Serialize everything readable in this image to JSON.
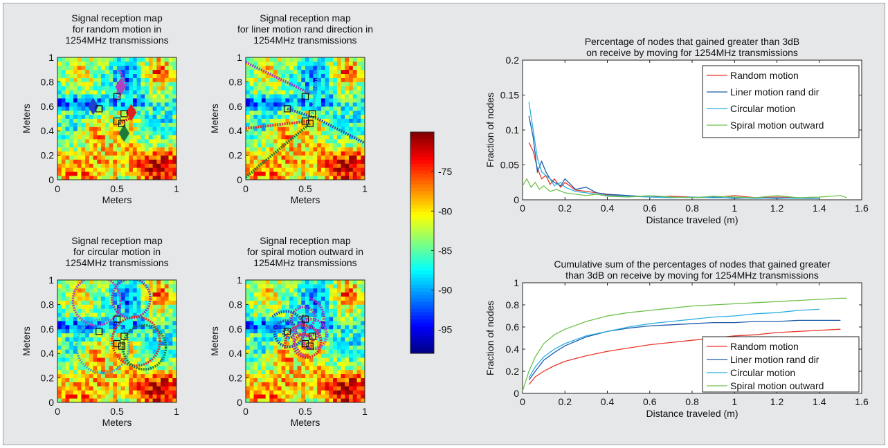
{
  "chart_data": [
    {
      "type": "heatmap",
      "title": "Signal reception map\nfor random motion in\n1254MHz transmissions",
      "xlabel": "Meters",
      "ylabel": "Meters",
      "xlim": [
        0,
        1
      ],
      "ylim": [
        0,
        1
      ],
      "xticks": [
        "0",
        "0.5",
        "1"
      ],
      "yticks": [
        "0",
        "0.2",
        "0.4",
        "0.6",
        "0.8",
        "1"
      ],
      "nodes": [
        [
          0.35,
          0.58
        ],
        [
          0.5,
          0.68
        ],
        [
          0.56,
          0.54
        ],
        [
          0.5,
          0.48
        ],
        [
          0.54,
          0.46
        ]
      ],
      "overlay": "random"
    },
    {
      "type": "heatmap",
      "title": "Signal reception map\nfor liner motion rand direction in\n1254MHz transmissions",
      "xlabel": "Meters",
      "ylabel": "Meters",
      "xlim": [
        0,
        1
      ],
      "ylim": [
        0,
        1
      ],
      "xticks": [
        "0",
        "0.5",
        "1"
      ],
      "yticks": [
        "0",
        "0.2",
        "0.4",
        "0.6",
        "0.8",
        "1"
      ],
      "nodes": [
        [
          0.35,
          0.58
        ],
        [
          0.5,
          0.68
        ],
        [
          0.56,
          0.54
        ],
        [
          0.5,
          0.48
        ],
        [
          0.54,
          0.46
        ]
      ],
      "overlay": "linear"
    },
    {
      "type": "heatmap",
      "title": "Signal reception map\nfor circular motion in\n1254MHz transmissions",
      "xlabel": "Meters",
      "ylabel": "Meters",
      "xlim": [
        0,
        1
      ],
      "ylim": [
        0,
        1
      ],
      "xticks": [
        "0",
        "0.5",
        "1"
      ],
      "yticks": [
        "0",
        "0.2",
        "0.4",
        "0.6",
        "0.8",
        "1"
      ],
      "nodes": [
        [
          0.35,
          0.58
        ],
        [
          0.5,
          0.68
        ],
        [
          0.56,
          0.54
        ],
        [
          0.5,
          0.48
        ],
        [
          0.54,
          0.46
        ]
      ],
      "overlay": "circular"
    },
    {
      "type": "heatmap",
      "title": "Signal reception map\nfor spiral motion outward in\n1254MHz transmissions",
      "xlabel": "Meters",
      "ylabel": "Meters",
      "xlim": [
        0,
        1
      ],
      "ylim": [
        0,
        1
      ],
      "xticks": [
        "0",
        "0.5",
        "1"
      ],
      "yticks": [
        "0",
        "0.2",
        "0.4",
        "0.6",
        "0.8",
        "1"
      ],
      "nodes": [
        [
          0.35,
          0.58
        ],
        [
          0.5,
          0.68
        ],
        [
          0.56,
          0.54
        ],
        [
          0.5,
          0.48
        ],
        [
          0.54,
          0.46
        ]
      ],
      "overlay": "spiral"
    },
    {
      "type": "colorbar",
      "range": [
        -98,
        -70
      ],
      "ticks": [
        -75,
        -80,
        -85,
        -90,
        -95
      ],
      "tick_labels": [
        "-75",
        "-80",
        "-85",
        "-90",
        "-95"
      ]
    },
    {
      "type": "line",
      "title": "Percentage of nodes that gained greater than 3dB\non receive by moving for 1254MHz transmissions",
      "xlabel": "Distance traveled (m)",
      "ylabel": "Fraction of nodes",
      "xlim": [
        0,
        1.6
      ],
      "ylim": [
        0,
        0.2
      ],
      "xticks": [
        "0",
        "0.2",
        "0.4",
        "0.6",
        "0.8",
        "1",
        "1.2",
        "1.4",
        "1.6"
      ],
      "yticks": [
        "0",
        "0.05",
        "0.1",
        "0.15",
        "0.2"
      ],
      "legend_position": "top-right",
      "series": [
        {
          "name": "Random motion",
          "color": "#e8382a",
          "x": [
            0.03,
            0.05,
            0.07,
            0.09,
            0.11,
            0.13,
            0.15,
            0.18,
            0.2,
            0.25,
            0.3,
            0.35,
            0.4,
            0.5,
            0.6,
            0.7,
            0.8,
            0.9,
            1.0,
            1.1,
            1.2,
            1.3,
            1.4
          ],
          "y": [
            0.082,
            0.07,
            0.045,
            0.03,
            0.035,
            0.022,
            0.03,
            0.018,
            0.025,
            0.014,
            0.012,
            0.01,
            0.007,
            0.006,
            0.004,
            0.005,
            0.004,
            0.003,
            0.006,
            0.003,
            0.004,
            0.003,
            0.002
          ]
        },
        {
          "name": "Liner motion rand dir",
          "color": "#1c5aa8",
          "x": [
            0.03,
            0.05,
            0.07,
            0.09,
            0.11,
            0.13,
            0.15,
            0.18,
            0.2,
            0.25,
            0.3,
            0.35,
            0.4,
            0.5,
            0.6,
            0.7,
            0.8,
            0.9,
            1.0,
            1.1,
            1.2,
            1.3,
            1.4
          ],
          "y": [
            0.12,
            0.09,
            0.04,
            0.055,
            0.04,
            0.03,
            0.025,
            0.02,
            0.03,
            0.015,
            0.018,
            0.01,
            0.008,
            0.006,
            0.004,
            0.004,
            0.003,
            0.004,
            0.002,
            0.003,
            0.002,
            0.003,
            0.002
          ]
        },
        {
          "name": "Circular motion",
          "color": "#2aaee0",
          "x": [
            0.03,
            0.05,
            0.07,
            0.09,
            0.11,
            0.13,
            0.15,
            0.18,
            0.2,
            0.25,
            0.3,
            0.35,
            0.4,
            0.5,
            0.6,
            0.7,
            0.8,
            0.9,
            1.0,
            1.1,
            1.2,
            1.3,
            1.4
          ],
          "y": [
            0.14,
            0.1,
            0.06,
            0.04,
            0.035,
            0.03,
            0.02,
            0.025,
            0.018,
            0.012,
            0.01,
            0.008,
            0.006,
            0.005,
            0.004,
            0.003,
            0.004,
            0.003,
            0.003,
            0.002,
            0.003,
            0.002,
            0.002
          ]
        },
        {
          "name": "Spiral motion outward",
          "color": "#6cc04a",
          "x": [
            0.0,
            0.02,
            0.04,
            0.06,
            0.08,
            0.1,
            0.13,
            0.16,
            0.2,
            0.25,
            0.3,
            0.35,
            0.4,
            0.5,
            0.6,
            0.7,
            0.8,
            0.9,
            1.0,
            1.1,
            1.2,
            1.3,
            1.4,
            1.5,
            1.53
          ],
          "y": [
            0.02,
            0.03,
            0.018,
            0.025,
            0.015,
            0.02,
            0.012,
            0.015,
            0.01,
            0.008,
            0.006,
            0.008,
            0.005,
            0.004,
            0.006,
            0.004,
            0.003,
            0.005,
            0.004,
            0.003,
            0.006,
            0.003,
            0.004,
            0.006,
            0.003
          ]
        }
      ]
    },
    {
      "type": "line",
      "title": "Cumulative sum of the percentages of nodes that gained greater\nthan 3dB on receive by moving for 1254MHz transmissions",
      "xlabel": "Distance traveled (m)",
      "ylabel": "Fraction of nodes",
      "xlim": [
        0,
        1.6
      ],
      "ylim": [
        0,
        1
      ],
      "xticks": [
        "0",
        "0.2",
        "0.4",
        "0.6",
        "0.8",
        "1",
        "1.2",
        "1.4",
        "1.6"
      ],
      "yticks": [
        "0",
        "0.2",
        "0.4",
        "0.6",
        "0.8",
        "1"
      ],
      "legend_position": "bottom-right",
      "series": [
        {
          "name": "Random motion",
          "color": "#e8382a",
          "x": [
            0.03,
            0.06,
            0.1,
            0.15,
            0.2,
            0.3,
            0.4,
            0.5,
            0.6,
            0.7,
            0.8,
            0.9,
            1.0,
            1.1,
            1.2,
            1.3,
            1.4,
            1.5
          ],
          "y": [
            0.08,
            0.15,
            0.2,
            0.25,
            0.29,
            0.34,
            0.38,
            0.41,
            0.44,
            0.46,
            0.48,
            0.5,
            0.52,
            0.53,
            0.55,
            0.56,
            0.57,
            0.58
          ]
        },
        {
          "name": "Liner motion rand dir",
          "color": "#1c5aa8",
          "x": [
            0.03,
            0.06,
            0.1,
            0.15,
            0.2,
            0.3,
            0.4,
            0.5,
            0.6,
            0.7,
            0.8,
            0.9,
            1.0,
            1.1,
            1.2,
            1.3,
            1.4,
            1.5
          ],
          "y": [
            0.12,
            0.2,
            0.3,
            0.37,
            0.43,
            0.51,
            0.56,
            0.59,
            0.61,
            0.62,
            0.63,
            0.64,
            0.64,
            0.65,
            0.65,
            0.66,
            0.66,
            0.66
          ]
        },
        {
          "name": "Circular motion",
          "color": "#2aaee0",
          "x": [
            0.03,
            0.06,
            0.1,
            0.15,
            0.2,
            0.3,
            0.4,
            0.5,
            0.6,
            0.7,
            0.8,
            0.9,
            1.0,
            1.1,
            1.2,
            1.3,
            1.4
          ],
          "y": [
            0.14,
            0.24,
            0.33,
            0.4,
            0.45,
            0.52,
            0.56,
            0.6,
            0.63,
            0.65,
            0.67,
            0.69,
            0.7,
            0.72,
            0.73,
            0.75,
            0.76
          ]
        },
        {
          "name": "Spiral motion outward",
          "color": "#6cc04a",
          "x": [
            0.0,
            0.03,
            0.06,
            0.1,
            0.15,
            0.2,
            0.3,
            0.4,
            0.5,
            0.6,
            0.7,
            0.8,
            0.9,
            1.0,
            1.1,
            1.2,
            1.3,
            1.4,
            1.5,
            1.53
          ],
          "y": [
            0.02,
            0.2,
            0.33,
            0.45,
            0.53,
            0.58,
            0.65,
            0.7,
            0.73,
            0.75,
            0.77,
            0.79,
            0.8,
            0.81,
            0.82,
            0.83,
            0.84,
            0.85,
            0.86,
            0.86
          ]
        }
      ]
    }
  ]
}
